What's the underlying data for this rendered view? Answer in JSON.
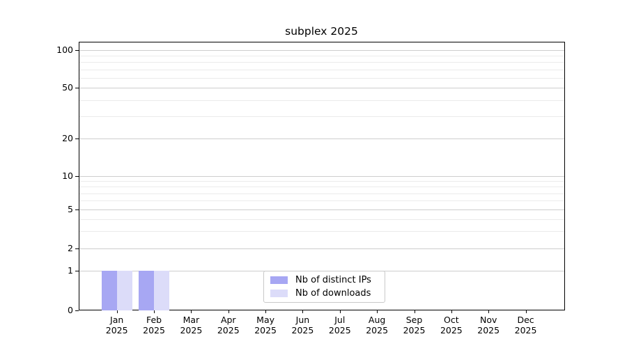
{
  "chart_data": {
    "type": "bar",
    "title": "subplex 2025",
    "categories": [
      "Jan 2025",
      "Feb 2025",
      "Mar 2025",
      "Apr 2025",
      "May 2025",
      "Jun 2025",
      "Jul 2025",
      "Aug 2025",
      "Sep 2025",
      "Oct 2025",
      "Nov 2025",
      "Dec 2025"
    ],
    "x_ticks": [
      {
        "month": "Jan",
        "year": "2025"
      },
      {
        "month": "Feb",
        "year": "2025"
      },
      {
        "month": "Mar",
        "year": "2025"
      },
      {
        "month": "Apr",
        "year": "2025"
      },
      {
        "month": "May",
        "year": "2025"
      },
      {
        "month": "Jun",
        "year": "2025"
      },
      {
        "month": "Jul",
        "year": "2025"
      },
      {
        "month": "Aug",
        "year": "2025"
      },
      {
        "month": "Sep",
        "year": "2025"
      },
      {
        "month": "Oct",
        "year": "2025"
      },
      {
        "month": "Nov",
        "year": "2025"
      },
      {
        "month": "Dec",
        "year": "2025"
      }
    ],
    "series": [
      {
        "name": "Nb of distinct IPs",
        "color": "#a7a7f3",
        "values": [
          1,
          1,
          0,
          0,
          0,
          0,
          0,
          0,
          0,
          0,
          0,
          0
        ]
      },
      {
        "name": "Nb of downloads",
        "color": "#dcdcf9",
        "values": [
          1,
          1,
          0,
          0,
          0,
          0,
          0,
          0,
          0,
          0,
          0,
          0
        ]
      }
    ],
    "y_axis": {
      "scale": "symlog",
      "tick_labels": [
        "100",
        "50",
        "20",
        "10",
        "5",
        "2",
        "1",
        "0"
      ],
      "tick_values": [
        100,
        50,
        20,
        10,
        5,
        2,
        1,
        0
      ],
      "minor_gridline_values": [
        3,
        4,
        6,
        7,
        8,
        9,
        30,
        40,
        60,
        70,
        80,
        90
      ],
      "range": [
        0,
        130
      ]
    },
    "grid": {
      "horizontal_major": true,
      "horizontal_minor": true,
      "vertical": false
    },
    "legend": {
      "position": "inside-bottom-center",
      "entries": [
        "Nb of distinct IPs",
        "Nb of downloads"
      ]
    }
  },
  "colors": {
    "background": "#ffffff",
    "bar_distinct_ips": "#a7a7f3",
    "bar_downloads": "#dcdcf9",
    "grid_major": "#cdcdcd",
    "grid_minor": "#ebebeb",
    "axis_line": "#000000",
    "text": "#000000",
    "legend_border": "#c9c9c9"
  }
}
